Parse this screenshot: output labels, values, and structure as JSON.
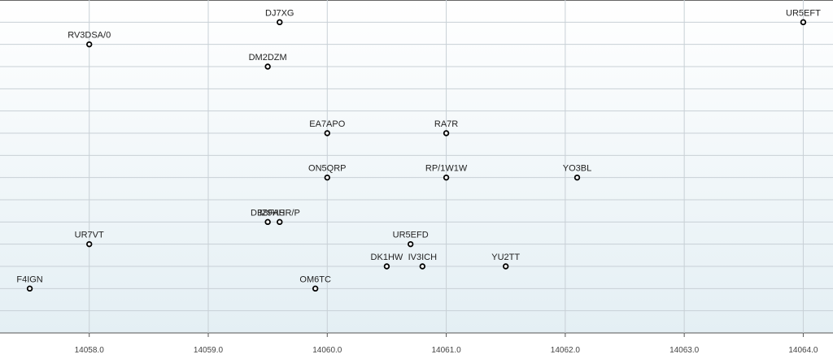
{
  "chart_data": {
    "type": "scatter",
    "labels": [
      "DJ7XG",
      "UR5EFT",
      "RV3DSA/0",
      "DM2DZM",
      "EA7APO",
      "RA7R",
      "ON5QRP",
      "RP/1W1W",
      "YO3BL",
      "DB8FAS",
      "IZ9HHR/P",
      "UR7VT",
      "UR5EFD",
      "DK1HW",
      "IV3ICH",
      "YU2TT",
      "F4IGN",
      "OM6TC"
    ],
    "x": [
      14059.6,
      14064.0,
      14058.0,
      14059.5,
      14060.0,
      14061.0,
      14060.0,
      14061.0,
      14062.1,
      14059.5,
      14059.6,
      14058.0,
      14060.7,
      14060.5,
      14060.8,
      14061.5,
      14057.5,
      14059.9
    ],
    "values": [
      1,
      1,
      2,
      3,
      6,
      6,
      8,
      8,
      8,
      10,
      10,
      11,
      11,
      12,
      12,
      12,
      13,
      13
    ],
    "xlim": [
      14057.25,
      14064.25
    ],
    "xticks": [
      {
        "value": 14058,
        "label": "14058.0"
      },
      {
        "value": 14059,
        "label": "14059.0"
      },
      {
        "value": 14060,
        "label": "14060.0"
      },
      {
        "value": 14061,
        "label": "14061.0"
      },
      {
        "value": 14062,
        "label": "14062.0"
      },
      {
        "value": 14063,
        "label": "14063.0"
      },
      {
        "value": 14064,
        "label": "14064.0"
      }
    ],
    "ylim": [
      15,
      0
    ],
    "yticks": [
      1,
      2,
      3,
      4,
      5,
      6,
      7,
      8,
      9,
      10,
      11,
      12,
      13,
      14
    ],
    "grid": true,
    "color": "#000000"
  }
}
